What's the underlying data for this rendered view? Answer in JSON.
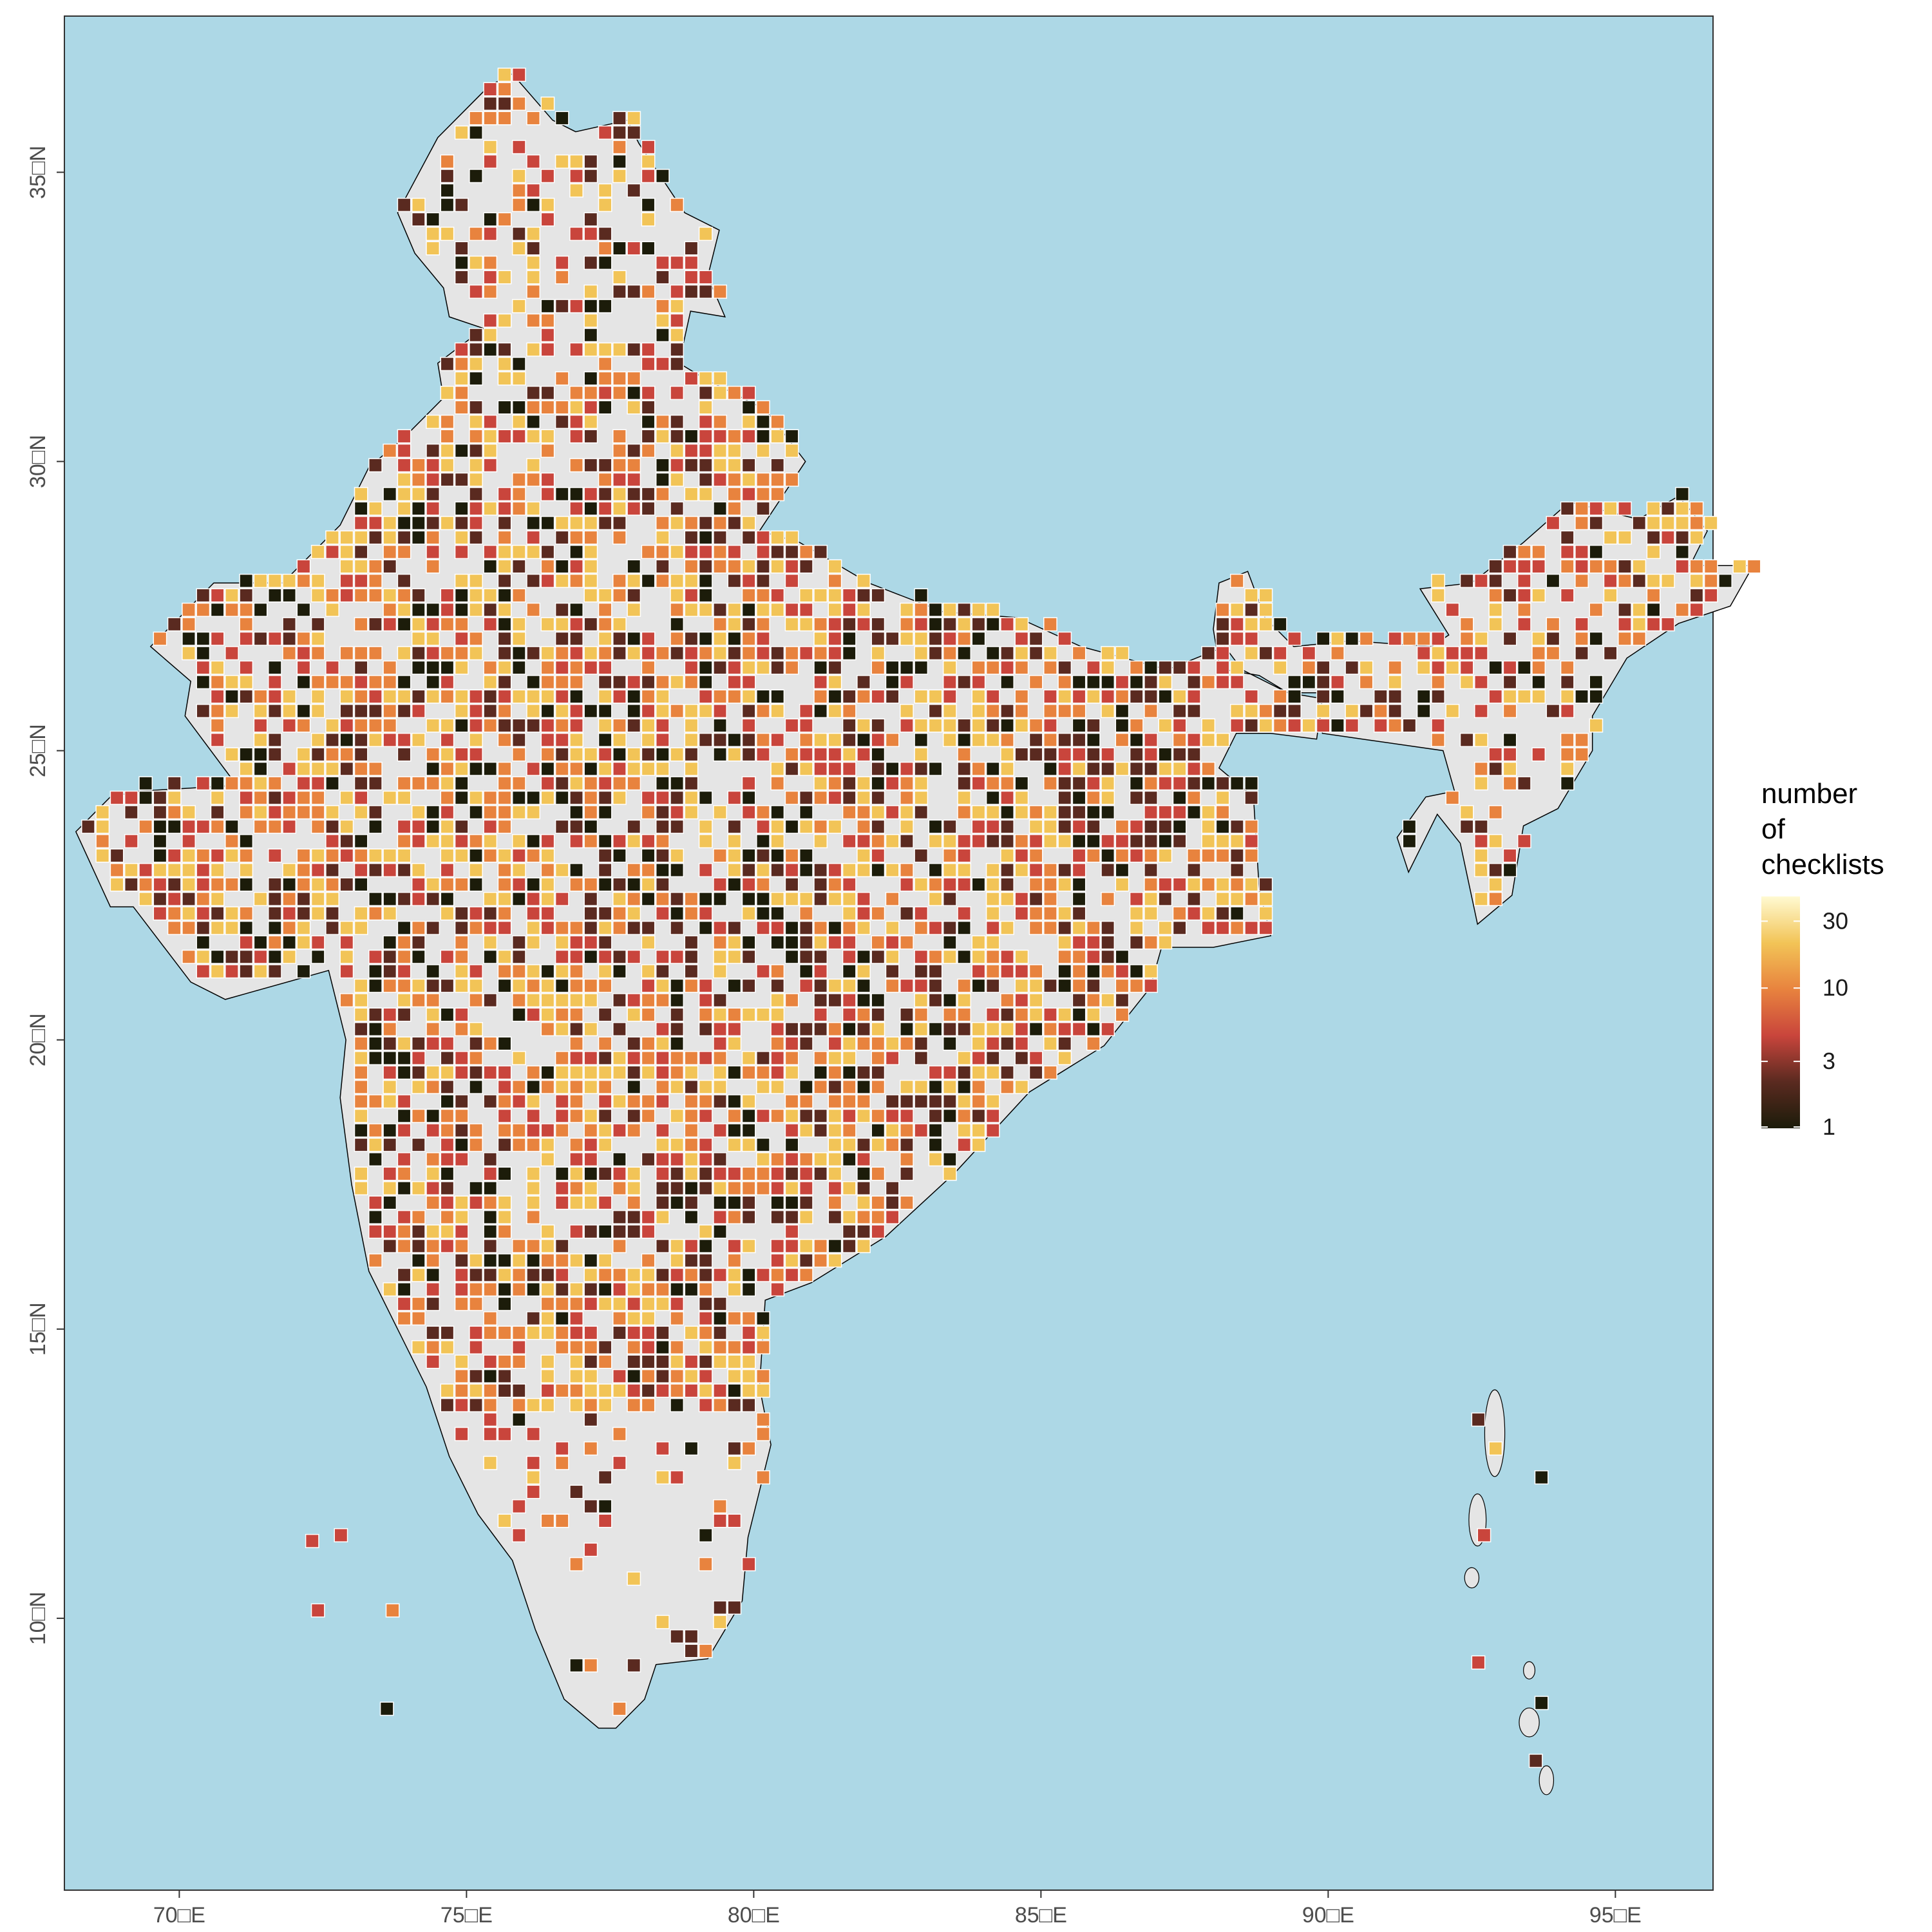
{
  "map": {
    "type": "heatmap",
    "colors": {
      "ocean": "#add8e6",
      "land": "#e5e5e5",
      "border": "#000000",
      "frame": "#333333"
    },
    "x_ticks": [
      "70□E",
      "75□E",
      "80□E",
      "85□E",
      "90□E",
      "95□E"
    ],
    "y_ticks": [
      "35□N",
      "30□N",
      "25□N",
      "20□N",
      "15□N",
      "10□N"
    ],
    "x_range": [
      68.0,
      96.7
    ],
    "y_range": [
      5.3,
      37.7
    ],
    "legend": {
      "title_lines": [
        "number",
        "of",
        "checklists"
      ],
      "ticks": [
        "30",
        "10",
        "3",
        "1"
      ],
      "scale": "log",
      "colors": [
        "#1c1c0a",
        "#5a2a20",
        "#c9453c",
        "#e8833e",
        "#f2c457",
        "#fffad2"
      ]
    }
  },
  "chart_data": {
    "type": "heatmap",
    "title": "",
    "xlabel": "",
    "ylabel": "",
    "xlim": [
      68.0,
      96.7
    ],
    "ylim": [
      5.3,
      37.7
    ],
    "x_ticks": [
      70,
      75,
      80,
      85,
      90,
      95
    ],
    "y_ticks": [
      10,
      15,
      20,
      25,
      30,
      35
    ],
    "legend_title": "number of checklists",
    "legend_scale": "log",
    "legend_range": [
      1,
      45
    ],
    "legend_ticks": [
      1,
      3,
      10,
      30
    ],
    "cell_size_deg": 0.25,
    "cells_description": "Gridded cells of checklist counts across India; values range 1 to ~45 on a log colour scale."
  }
}
